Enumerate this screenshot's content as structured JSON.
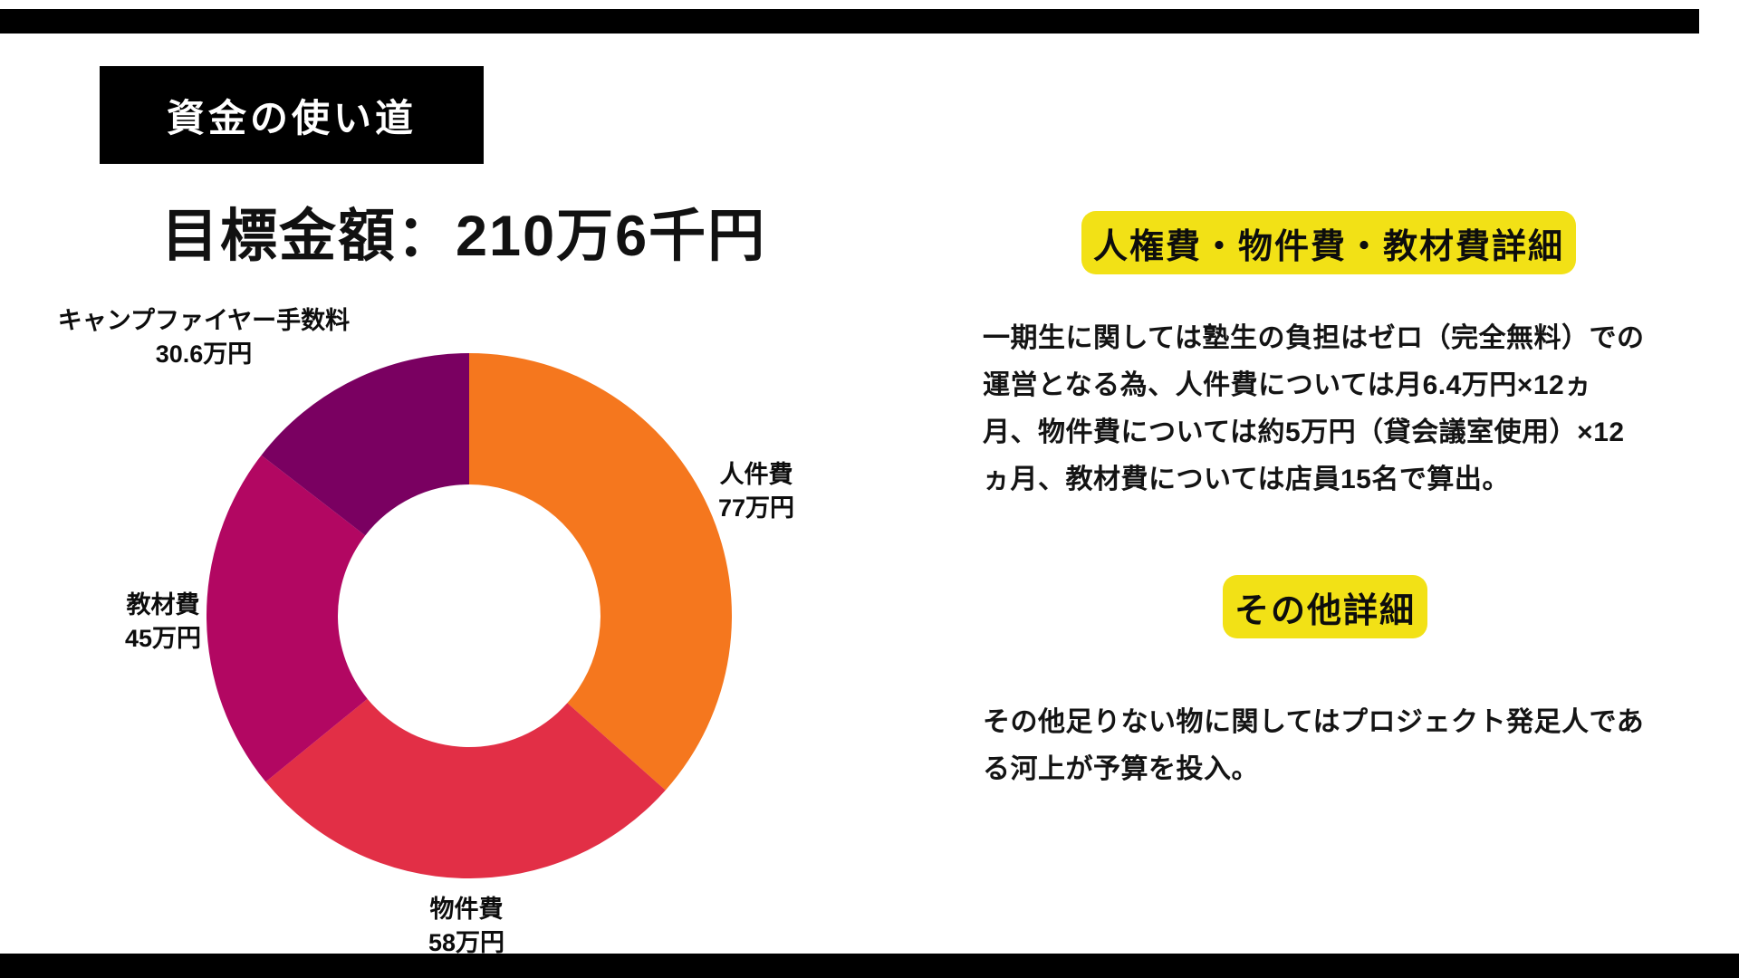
{
  "page": {
    "background": "#ffffff",
    "border_bar_color": "#000000",
    "highlight_color": "#F2E116"
  },
  "header": {
    "badge": "資金の使い道",
    "title": "目標金額：210万6千円"
  },
  "chart_data": {
    "type": "pie",
    "subtype": "donut",
    "title": "目標金額：210万6千円",
    "total": 210.6,
    "total_unit": "万円",
    "start_angle_deg": 0,
    "clockwise": true,
    "inner_radius_ratio": 0.5,
    "segments": [
      {
        "label": "人件費",
        "value": 77,
        "value_label": "77万円",
        "color": "#F5771E"
      },
      {
        "label": "物件費",
        "value": 58,
        "value_label": "58万円",
        "color": "#E22F46"
      },
      {
        "label": "教材費",
        "value": 45,
        "value_label": "45万円",
        "color": "#B20762"
      },
      {
        "label": "キャンプファイヤー手数料",
        "value": 30.6,
        "value_label": "30.6万円",
        "color": "#7A0061"
      }
    ]
  },
  "right_panel": {
    "section1": {
      "heading": "人権費・物件費・教材費詳細",
      "lines": [
        "一期生に関しては塾生の負担はゼロ（完全無料）での",
        "運営となる為、人件費については月6.4万円×12ヵ",
        "月、物件費については約5万円（貸会議室使用）×12",
        "ヵ月、教材費については店員15名で算出。"
      ]
    },
    "section2": {
      "heading": "その他詳細",
      "lines": [
        "その他足りない物に関してはプロジェクト発足人であ",
        "る河上が予算を投入。"
      ]
    }
  }
}
